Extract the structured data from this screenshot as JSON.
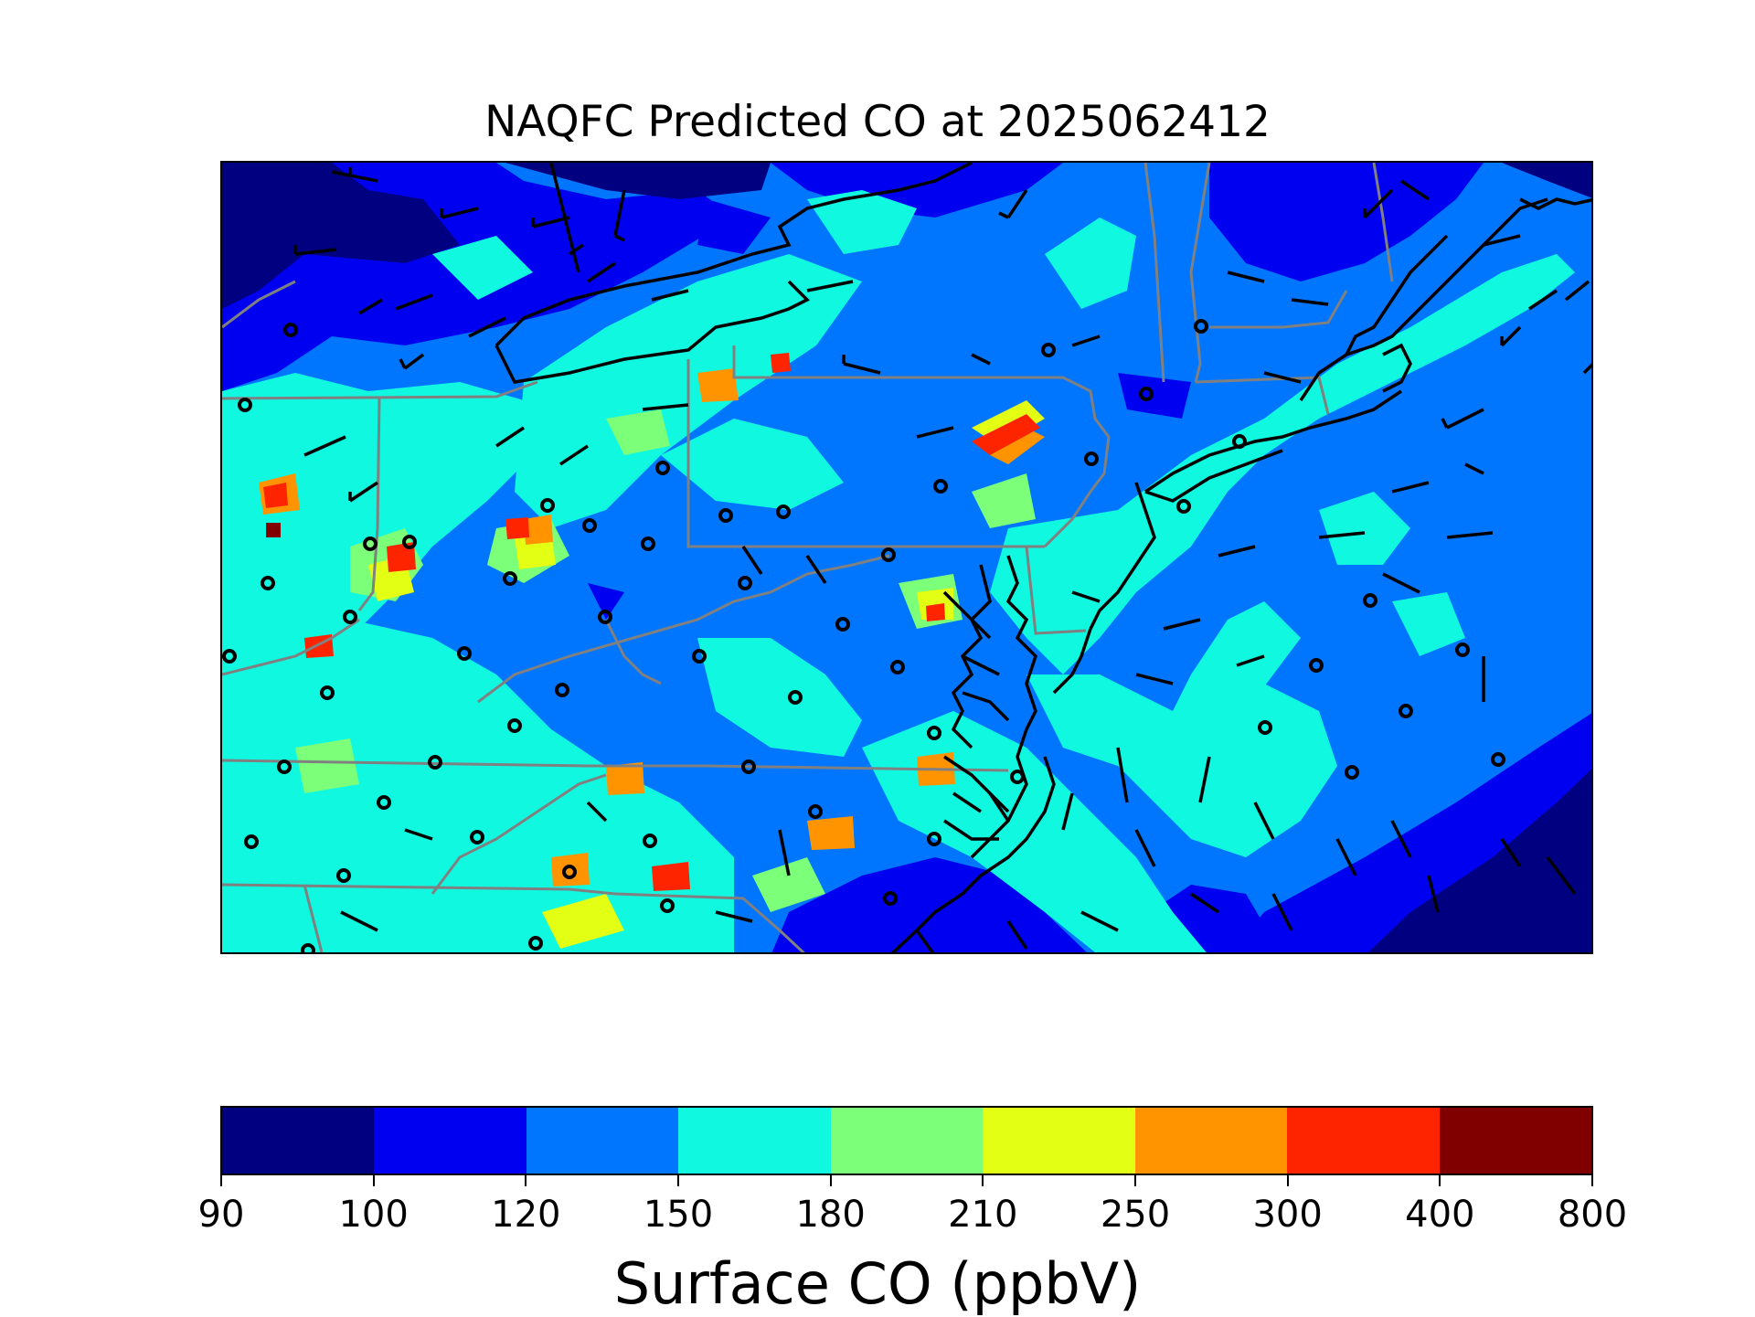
{
  "title": "NAQFC Predicted CO at 2025062412",
  "colorbar": {
    "label": "Surface CO (ppbV)",
    "levels": [
      "90",
      "100",
      "120",
      "150",
      "180",
      "210",
      "250",
      "300",
      "400",
      "800"
    ],
    "colors": [
      "#000080",
      "#0000f1",
      "#0076ff",
      "#10f8e0",
      "#7cff79",
      "#e3ff14",
      "#ff9400",
      "#ff2400",
      "#800000"
    ]
  },
  "map": {
    "legend_icons": [
      "wind-barb-icon",
      "monitor-station-icon"
    ],
    "background_level_color": "#0076ff",
    "coastline_color": "#000000",
    "state_border_color": "#808080"
  }
}
